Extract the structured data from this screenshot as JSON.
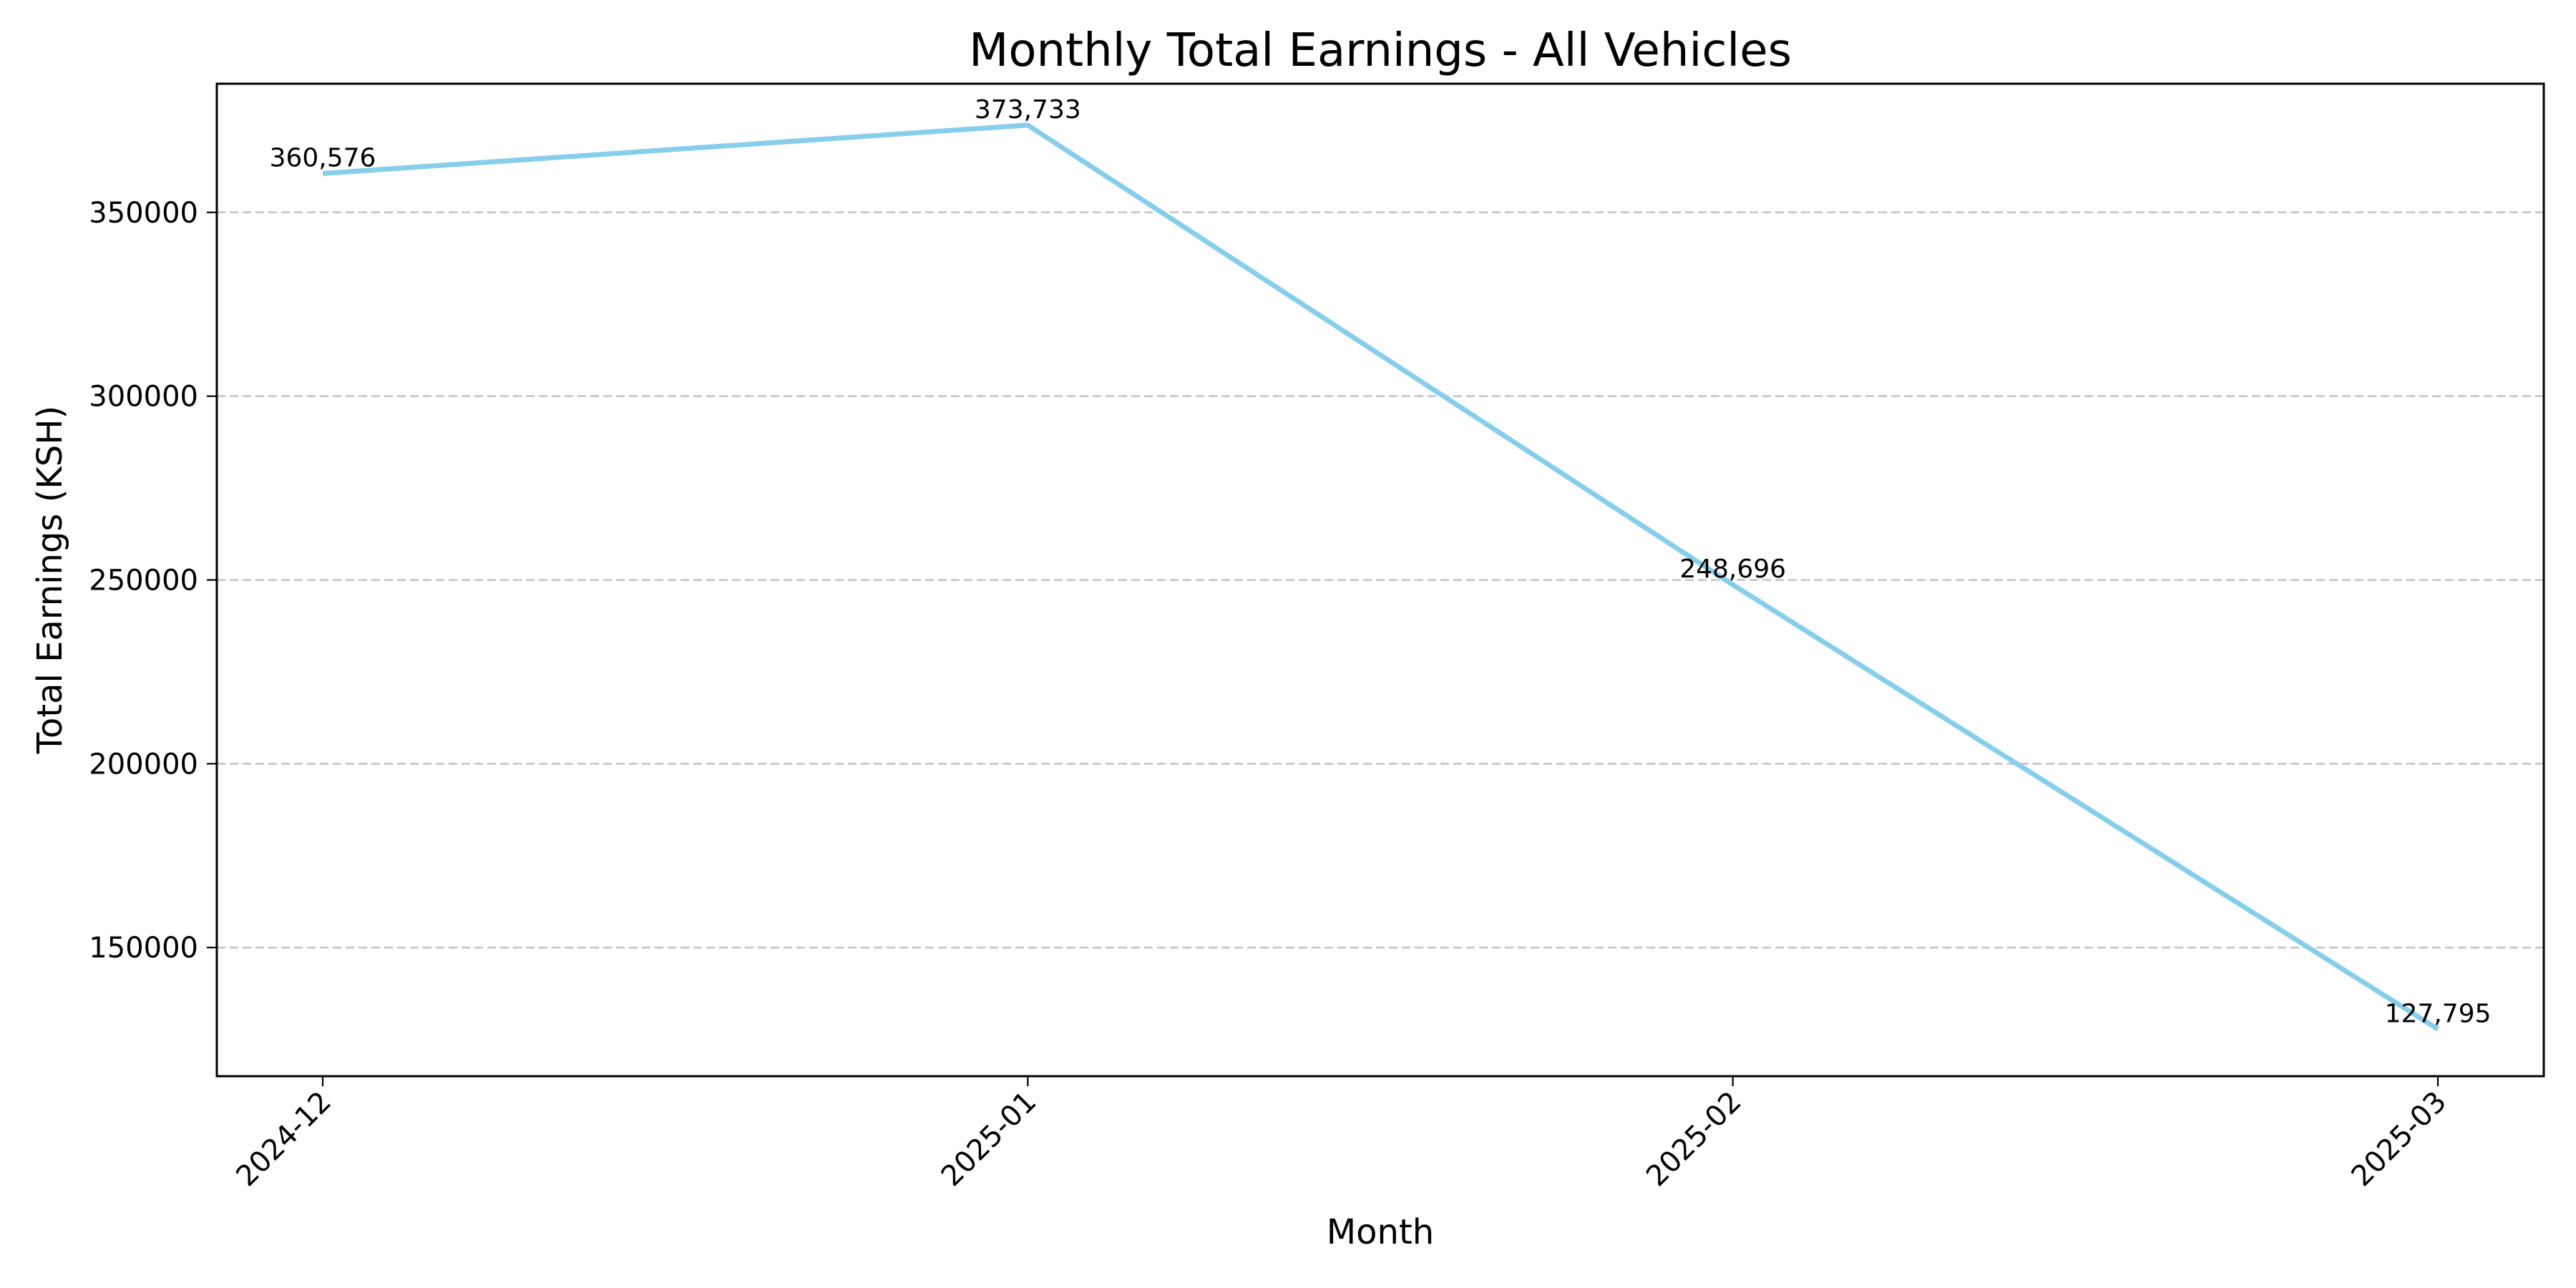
{
  "chart_data": {
    "type": "line",
    "title": "Monthly Total Earnings - All Vehicles",
    "xlabel": "Month",
    "ylabel": "Total Earnings (KSH)",
    "categories": [
      "2024-12",
      "2025-01",
      "2025-02",
      "2025-03"
    ],
    "series": [
      {
        "values": [
          360576,
          373733,
          248696,
          127795
        ],
        "data_labels": [
          "360,576",
          "373,733",
          "248,696",
          "127,795"
        ],
        "color": "#87ceeb"
      }
    ],
    "yticks": [
      150000,
      200000,
      250000,
      300000,
      350000
    ],
    "ytick_labels": [
      "150000",
      "200000",
      "250000",
      "300000",
      "350000"
    ],
    "ylim": [
      115000,
      385000
    ],
    "grid": "horizontal dashed",
    "legend": "none"
  }
}
